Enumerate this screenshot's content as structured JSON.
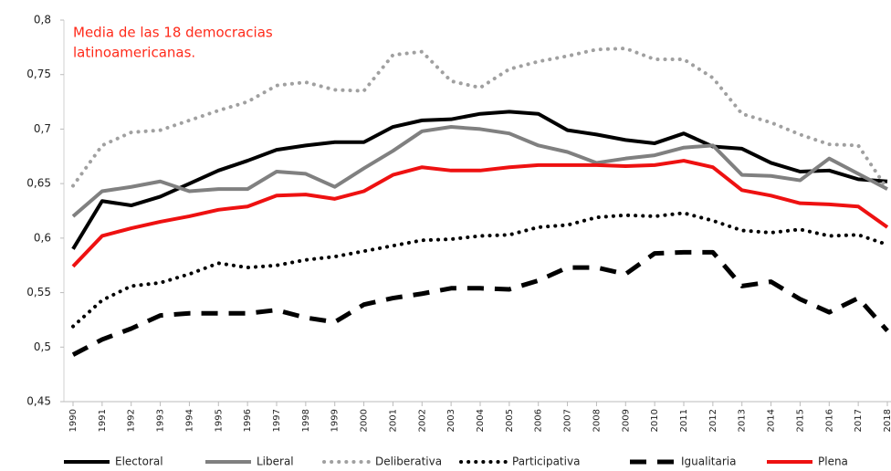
{
  "chart_data": {
    "type": "line",
    "annotation": [
      "Media de las 18 democracias",
      "latinoamericanas."
    ],
    "annotation_color": "#ff2a1a",
    "categories": [
      "1990",
      "1991",
      "1992",
      "1993",
      "1994",
      "1995",
      "1996",
      "1997",
      "1998",
      "1999",
      "2000",
      "2001",
      "2002",
      "2003",
      "2004",
      "2005",
      "2006",
      "2007",
      "2008",
      "2009",
      "2010",
      "2011",
      "2012",
      "2013",
      "2014",
      "2015",
      "2016",
      "2017",
      "2018"
    ],
    "ylim": [
      0.45,
      0.8
    ],
    "yticks": [
      {
        "value": 0.45,
        "label": "0,45"
      },
      {
        "value": 0.5,
        "label": "0,5"
      },
      {
        "value": 0.55,
        "label": "0,55"
      },
      {
        "value": 0.6,
        "label": "0,6"
      },
      {
        "value": 0.65,
        "label": "0,65"
      },
      {
        "value": 0.7,
        "label": "0,7"
      },
      {
        "value": 0.75,
        "label": "0,75"
      },
      {
        "value": 0.8,
        "label": "0,8"
      }
    ],
    "grid": false,
    "legend": "bottom",
    "series": [
      {
        "name": "Electoral",
        "color": "#000000",
        "style": "solid",
        "values": [
          0.59,
          0.634,
          0.63,
          0.638,
          0.65,
          0.662,
          0.671,
          0.681,
          0.685,
          0.688,
          0.688,
          0.702,
          0.708,
          0.709,
          0.714,
          0.716,
          0.714,
          0.699,
          0.695,
          0.69,
          0.687,
          0.696,
          0.684,
          0.682,
          0.669,
          0.661,
          0.662,
          0.654,
          0.652
        ]
      },
      {
        "name": "Liberal",
        "color": "#808080",
        "style": "solid",
        "values": [
          0.62,
          0.643,
          0.647,
          0.652,
          0.643,
          0.645,
          0.645,
          0.661,
          0.659,
          0.647,
          0.664,
          0.68,
          0.698,
          0.702,
          0.7,
          0.696,
          0.685,
          0.679,
          0.669,
          0.673,
          0.676,
          0.683,
          0.685,
          0.658,
          0.657,
          0.653,
          0.673,
          0.659,
          0.645
        ]
      },
      {
        "name": "Deliberativa",
        "color": "#a0a0a0",
        "style": "dotted",
        "values": [
          0.648,
          0.685,
          0.697,
          0.699,
          0.708,
          0.717,
          0.725,
          0.74,
          0.743,
          0.736,
          0.735,
          0.768,
          0.771,
          0.744,
          0.738,
          0.755,
          0.762,
          0.767,
          0.773,
          0.774,
          0.764,
          0.764,
          0.747,
          0.714,
          0.706,
          0.695,
          0.686,
          0.685,
          0.645
        ]
      },
      {
        "name": "Participativa",
        "color": "#000000",
        "style": "dotted",
        "values": [
          0.519,
          0.543,
          0.556,
          0.559,
          0.567,
          0.577,
          0.573,
          0.575,
          0.58,
          0.583,
          0.588,
          0.593,
          0.598,
          0.599,
          0.602,
          0.603,
          0.61,
          0.612,
          0.619,
          0.621,
          0.62,
          0.623,
          0.616,
          0.607,
          0.605,
          0.608,
          0.602,
          0.603,
          0.594
        ]
      },
      {
        "name": "Igualitaria",
        "color": "#000000",
        "style": "dashed",
        "values": [
          0.493,
          0.507,
          0.517,
          0.529,
          0.531,
          0.531,
          0.531,
          0.534,
          0.527,
          0.523,
          0.539,
          0.545,
          0.549,
          0.554,
          0.554,
          0.553,
          0.561,
          0.573,
          0.573,
          0.567,
          0.586,
          0.587,
          0.587,
          0.556,
          0.56,
          0.544,
          0.532,
          0.545,
          0.515
        ]
      },
      {
        "name": "Plena",
        "color": "#ee1111",
        "style": "solid",
        "values": [
          0.574,
          0.602,
          0.609,
          0.615,
          0.62,
          0.626,
          0.629,
          0.639,
          0.64,
          0.636,
          0.643,
          0.658,
          0.665,
          0.662,
          0.662,
          0.665,
          0.667,
          0.667,
          0.667,
          0.666,
          0.667,
          0.671,
          0.665,
          0.644,
          0.639,
          0.632,
          0.631,
          0.629,
          0.61
        ]
      }
    ]
  }
}
